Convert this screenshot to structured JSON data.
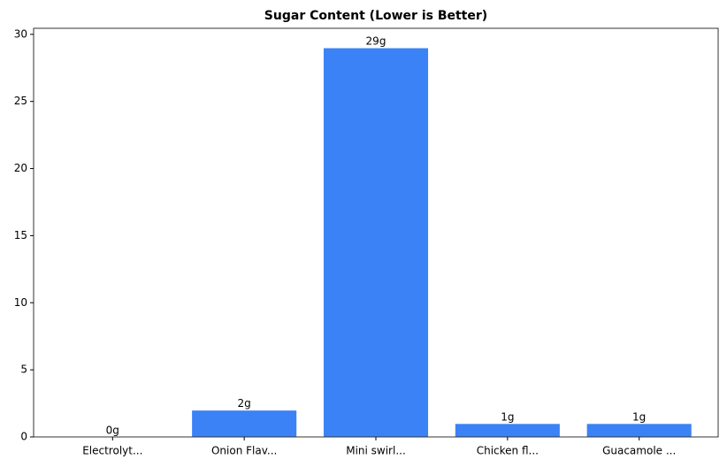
{
  "chart_data": {
    "type": "bar",
    "title": "Sugar Content (Lower is Better)",
    "categories": [
      "Electrolyt...",
      "Onion Flav...",
      "Mini swirl...",
      "Chicken fl...",
      "Guacamole ..."
    ],
    "values": [
      0,
      2,
      29,
      1,
      1
    ],
    "value_labels": [
      "0g",
      "2g",
      "29g",
      "1g",
      "1g"
    ],
    "color": "#3b82f6",
    "ylim": [
      0,
      30.45
    ],
    "yticks": [
      0,
      5,
      10,
      15,
      20,
      25,
      30
    ],
    "grid": false
  }
}
